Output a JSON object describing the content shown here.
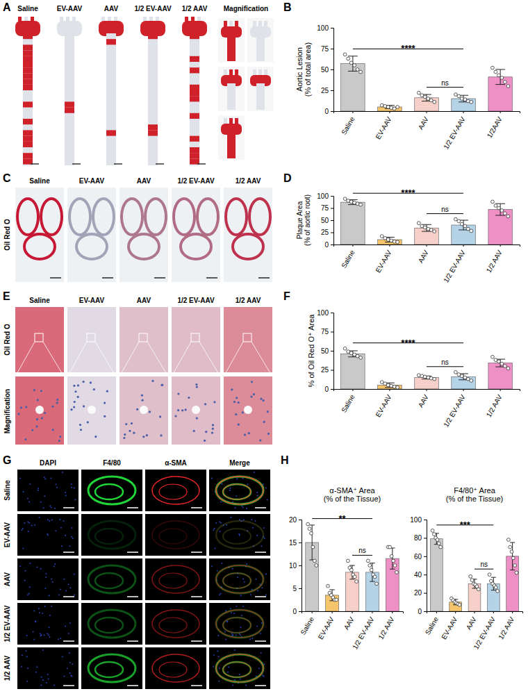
{
  "image_panels": [
    {
      "letter": "A",
      "columns": [
        "Saline",
        "EV-AAV",
        "AAV",
        "1/2 EV-AAV",
        "1/2 AAV",
        "Magnification"
      ]
    },
    {
      "letter": "C",
      "columns": [
        "Saline",
        "EV-AAV",
        "AAV",
        "1/2 EV-AAV",
        "1/2 AAV"
      ],
      "rows": [
        "Oil Red O"
      ]
    },
    {
      "letter": "E",
      "columns": [
        "Saline",
        "EV-AAV",
        "AAV",
        "1/2 EV-AAV",
        "1/2 AAV"
      ],
      "rows": [
        "Oil Red O",
        "Magnification"
      ]
    },
    {
      "letter": "G",
      "columns": [
        "DAPI",
        "F4/80",
        "α-SMA",
        "Merge"
      ],
      "rows": [
        "Saline",
        "EV-AAV",
        "AAV",
        "1/2 EV-AAV",
        "1/2 AAV"
      ]
    }
  ],
  "chart_data": [
    {
      "panel": "B",
      "type": "bar",
      "y_label": "Aortic Lesion (% of total area)",
      "categories": [
        "Saline",
        "EV-AAV",
        "AAV",
        "1/2 EV-AAV",
        "1/2AAV"
      ],
      "values": [
        57,
        5,
        16,
        15,
        41
      ],
      "errors": [
        9,
        2,
        4,
        4,
        9
      ],
      "points": [
        [
          68,
          63,
          58,
          55,
          50,
          47
        ],
        [
          7,
          6,
          5,
          4,
          3,
          5
        ],
        [
          22,
          19,
          17,
          15,
          13,
          11
        ],
        [
          20,
          18,
          15,
          14,
          12,
          11
        ],
        [
          52,
          47,
          43,
          40,
          35,
          30
        ]
      ],
      "colors": [
        "#c9c9c9",
        "#f6c46a",
        "#f7cfc9",
        "#b5d3e7",
        "#ee90c6"
      ],
      "ylim": [
        0,
        100
      ],
      "yticks": [
        0,
        25,
        50,
        75,
        100
      ],
      "annotations": [
        {
          "text": "****",
          "from": 0,
          "to": 3
        },
        {
          "text": "ns",
          "from": 2,
          "to": 3
        }
      ]
    },
    {
      "panel": "D",
      "type": "bar",
      "y_label": "Plaque Area (% of aortic root)",
      "categories": [
        "Saline",
        "EV-AAV",
        "AAV",
        "1/2 EV-AAV",
        "1/2 AAV"
      ],
      "values": [
        87,
        10,
        34,
        40,
        72
      ],
      "errors": [
        5,
        5,
        7,
        10,
        12
      ],
      "points": [
        [
          94,
          90,
          88,
          86,
          84,
          82
        ],
        [
          17,
          13,
          10,
          8,
          6,
          5
        ],
        [
          44,
          38,
          35,
          32,
          30,
          27
        ],
        [
          52,
          48,
          42,
          38,
          32,
          28
        ],
        [
          88,
          80,
          75,
          70,
          64,
          58
        ]
      ],
      "colors": [
        "#c9c9c9",
        "#f6c46a",
        "#f7cfc9",
        "#b5d3e7",
        "#ee90c6"
      ],
      "ylim": [
        0,
        100
      ],
      "yticks": [
        0,
        25,
        50,
        75,
        100
      ],
      "annotations": [
        {
          "text": "****",
          "from": 0,
          "to": 3
        },
        {
          "text": "ns",
          "from": 2,
          "to": 3
        }
      ]
    },
    {
      "panel": "F",
      "type": "bar",
      "y_label": "% of Oil Red O⁺ Area",
      "categories": [
        "Saline",
        "EV-AAV",
        "AAV",
        "1/2 EV-AAV",
        "1/2 AAV"
      ],
      "values": [
        46,
        5,
        15,
        16,
        34
      ],
      "errors": [
        4,
        3,
        2,
        4,
        5
      ],
      "points": [
        [
          53,
          49,
          47,
          45,
          43,
          41
        ],
        [
          9,
          7,
          5,
          4,
          3,
          2
        ],
        [
          18,
          17,
          16,
          15,
          14,
          13
        ],
        [
          22,
          19,
          17,
          15,
          13,
          11
        ],
        [
          42,
          38,
          36,
          33,
          30,
          27
        ]
      ],
      "colors": [
        "#c9c9c9",
        "#f6c46a",
        "#f7cfc9",
        "#b5d3e7",
        "#ee90c6"
      ],
      "ylim": [
        0,
        100
      ],
      "yticks": [
        0,
        25,
        50,
        75,
        100
      ],
      "annotations": [
        {
          "text": "****",
          "from": 0,
          "to": 3
        },
        {
          "text": "ns",
          "from": 2,
          "to": 3
        }
      ]
    },
    {
      "panel": "H",
      "type": "bar",
      "title": "α-SMA⁺ Area (% of the Tissue)",
      "categories": [
        "Saline",
        "EV-AAV",
        "AAV",
        "1/2 EV-AAV",
        "1/2 AAV"
      ],
      "values": [
        15,
        3.5,
        8.5,
        8.5,
        11.5
      ],
      "errors": [
        3.8,
        1.2,
        1.5,
        2,
        2.3
      ],
      "points": [
        [
          19,
          18,
          17,
          14,
          11,
          10
        ],
        [
          5.5,
          4,
          3.5,
          3,
          2.5,
          2.5
        ],
        [
          11,
          9.5,
          9,
          8,
          7.5,
          6.5
        ],
        [
          11,
          10,
          9,
          8,
          7.5,
          6
        ],
        [
          14,
          14,
          12,
          11,
          10,
          8.5
        ]
      ],
      "colors": [
        "#c9c9c9",
        "#f6c46a",
        "#f7cfc9",
        "#b5d3e7",
        "#ee90c6"
      ],
      "ylim": [
        0,
        20
      ],
      "yticks": [
        0,
        5,
        10,
        15,
        20
      ],
      "annotations": [
        {
          "text": "**",
          "from": 0,
          "to": 3
        },
        {
          "text": "ns",
          "from": 2,
          "to": 3
        }
      ]
    },
    {
      "type": "bar",
      "title": "F4/80⁺ Area (% of the Tissue)",
      "categories": [
        "Saline",
        "EV-AAV",
        "AAV",
        "1/2 EV-AAV",
        "1/2 AAV"
      ],
      "values": [
        79,
        10,
        30,
        30,
        60
      ],
      "errors": [
        6,
        3,
        5,
        7,
        15
      ],
      "points": [
        [
          88,
          84,
          80,
          78,
          74,
          70
        ],
        [
          14,
          12,
          10,
          9,
          8,
          7
        ],
        [
          38,
          34,
          30,
          29,
          27,
          24
        ],
        [
          40,
          33,
          30,
          28,
          26,
          22
        ],
        [
          78,
          70,
          65,
          58,
          50,
          42
        ]
      ],
      "colors": [
        "#c9c9c9",
        "#f6c46a",
        "#f7cfc9",
        "#b5d3e7",
        "#ee90c6"
      ],
      "ylim": [
        0,
        100
      ],
      "yticks": [
        0,
        20,
        40,
        60,
        80,
        100
      ],
      "annotations": [
        {
          "text": "***",
          "from": 0,
          "to": 3
        },
        {
          "text": "ns",
          "from": 2,
          "to": 3
        }
      ]
    }
  ]
}
